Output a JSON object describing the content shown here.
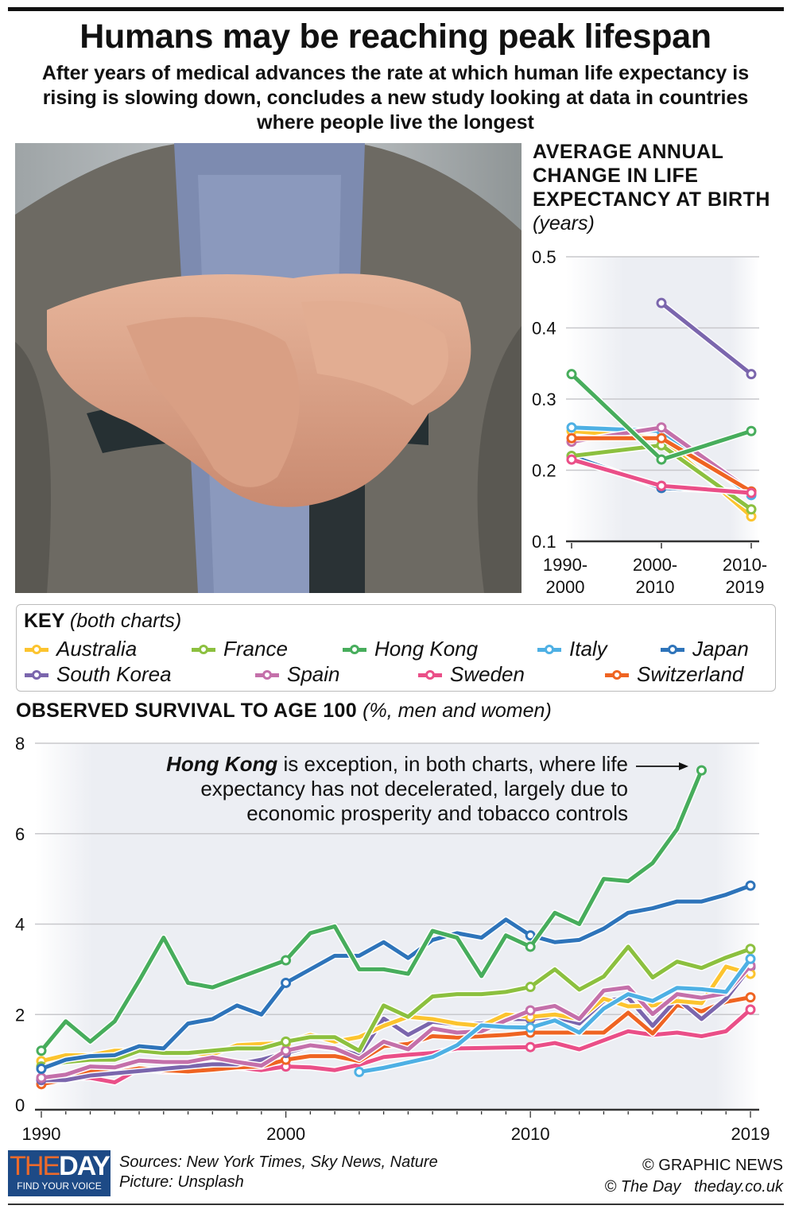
{
  "header": {
    "title": "Humans may be reaching peak lifespan",
    "subtitle": "After years of medical advances the rate at which human life expectancy is rising is slowing down, concludes a new study looking at data in countries where people live the longest"
  },
  "colors": {
    "Australia": "#fcc42f",
    "France": "#8cc03f",
    "Hong Kong": "#47ad5c",
    "Italy": "#4eb0e4",
    "Japan": "#2e74ba",
    "South Korea": "#7b66ad",
    "Spain": "#c470aa",
    "Sweden": "#ea4f88",
    "Switzerland": "#ef6422"
  },
  "key": {
    "title": "KEY",
    "subtitle": "(both charts)",
    "items": [
      "Australia",
      "France",
      "Hong Kong",
      "Italy",
      "Japan",
      "South Korea",
      "Spain",
      "Sweden",
      "Switzerland"
    ]
  },
  "chart_data": [
    {
      "type": "line",
      "title": "AVERAGE ANNUAL CHANGE IN LIFE EXPECTANCY AT BIRTH",
      "title_unit": "(years)",
      "categories": [
        "1990-2000",
        "2000-2010",
        "2010-2019"
      ],
      "ylim": [
        0.1,
        0.5
      ],
      "yticks": [
        "0.1",
        "0.2",
        "0.3",
        "0.4",
        "0.5"
      ],
      "grid": true,
      "series": [
        {
          "name": "Japan",
          "values": [
            0.22,
            0.175,
            0.17
          ]
        },
        {
          "name": "Sweden",
          "values": [
            0.215,
            0.178,
            0.168
          ]
        },
        {
          "name": "Australia",
          "values": [
            0.255,
            0.245,
            0.135
          ]
        },
        {
          "name": "France",
          "values": [
            0.22,
            0.235,
            0.145
          ]
        },
        {
          "name": "Italy",
          "values": [
            0.26,
            0.255,
            0.165
          ]
        },
        {
          "name": "Spain",
          "values": [
            0.24,
            0.26,
            0.17
          ]
        },
        {
          "name": "Switzerland",
          "values": [
            0.245,
            0.245,
            0.17
          ]
        },
        {
          "name": "Sweden",
          "values": [
            0.215,
            0.178,
            0.168
          ]
        },
        {
          "name": "South Korea",
          "values": [
            null,
            0.435,
            0.335
          ]
        },
        {
          "name": "Hong Kong",
          "values": [
            0.335,
            0.215,
            0.255
          ]
        }
      ]
    },
    {
      "type": "line",
      "title": "OBSERVED SURVIVAL TO AGE 100",
      "title_unit": "(%, men and women)",
      "x": [
        1990,
        1991,
        1992,
        1993,
        1994,
        1995,
        1996,
        1997,
        1998,
        1999,
        2000,
        2001,
        2002,
        2003,
        2004,
        2005,
        2006,
        2007,
        2008,
        2009,
        2010,
        2011,
        2012,
        2013,
        2014,
        2015,
        2016,
        2017,
        2018,
        2019
      ],
      "xticks": [
        "1990",
        "2000",
        "2010",
        "2019"
      ],
      "ylim": [
        0,
        8
      ],
      "yticks": [
        "0",
        "2",
        "4",
        "6",
        "8"
      ],
      "grid": true,
      "series": [
        {
          "name": "Sweden",
          "values": [
            0.56,
            0.59,
            0.6,
            0.5,
            0.8,
            0.74,
            0.74,
            0.8,
            0.83,
            0.77,
            0.85,
            0.83,
            0.77,
            0.89,
            1.06,
            1.11,
            1.15,
            1.25,
            1.26,
            1.27,
            1.28,
            1.37,
            1.23,
            1.43,
            1.63,
            1.55,
            1.6,
            1.52,
            1.63,
            2.11
          ]
        },
        {
          "name": "Switzerland",
          "values": [
            0.46,
            0.56,
            0.74,
            0.71,
            0.81,
            0.77,
            0.74,
            0.78,
            0.83,
            0.85,
            1.0,
            1.08,
            1.08,
            0.97,
            1.3,
            1.35,
            1.52,
            1.49,
            1.52,
            1.55,
            1.6,
            1.6,
            1.6,
            1.6,
            2.04,
            1.58,
            2.21,
            2.07,
            2.28,
            2.38
          ]
        },
        {
          "name": "South Korea",
          "values": [
            0.55,
            0.55,
            0.65,
            0.7,
            0.75,
            0.8,
            0.85,
            0.9,
            0.9,
            1.0,
            1.15,
            1.3,
            1.25,
            1.1,
            1.91,
            1.55,
            1.84,
            1.78,
            1.8,
            1.9,
            1.9,
            1.95,
            1.8,
            2.3,
            2.37,
            1.75,
            2.35,
            1.9,
            2.35,
            3.05
          ]
        },
        {
          "name": "Australia",
          "values": [
            0.97,
            1.1,
            1.1,
            1.2,
            1.2,
            1.15,
            1.15,
            1.12,
            1.32,
            1.35,
            1.37,
            1.55,
            1.4,
            1.5,
            1.75,
            1.95,
            1.9,
            1.8,
            1.75,
            2.0,
            1.95,
            2.0,
            1.9,
            2.35,
            2.18,
            2.2,
            2.3,
            2.25,
            3.06,
            2.9
          ]
        },
        {
          "name": "Spain",
          "values": [
            0.6,
            0.67,
            0.85,
            0.83,
            0.98,
            0.95,
            0.95,
            1.05,
            0.95,
            0.87,
            1.2,
            1.32,
            1.25,
            1.02,
            1.4,
            1.23,
            1.69,
            1.6,
            1.63,
            1.87,
            2.09,
            2.19,
            1.9,
            2.53,
            2.6,
            2.01,
            2.45,
            2.37,
            2.47,
            3.08
          ]
        },
        {
          "name": "Italy",
          "values": [
            null,
            null,
            null,
            null,
            null,
            null,
            null,
            null,
            null,
            null,
            null,
            null,
            null,
            0.73,
            0.82,
            0.94,
            1.06,
            1.32,
            1.76,
            1.72,
            1.71,
            1.87,
            1.6,
            2.13,
            2.45,
            2.3,
            2.59,
            2.56,
            2.5,
            3.23
          ]
        },
        {
          "name": "France",
          "values": [
            0.85,
            0.95,
            1.0,
            1.0,
            1.2,
            1.15,
            1.15,
            1.2,
            1.25,
            1.25,
            1.4,
            1.5,
            1.5,
            1.2,
            2.2,
            1.95,
            2.4,
            2.45,
            2.45,
            2.5,
            2.61,
            3.0,
            2.55,
            2.84,
            3.5,
            2.82,
            3.17,
            3.03,
            3.26,
            3.45
          ]
        },
        {
          "name": "Japan",
          "values": [
            0.8,
            1.0,
            1.08,
            1.1,
            1.3,
            1.25,
            1.8,
            1.9,
            2.2,
            2.0,
            2.7,
            3.0,
            3.3,
            3.3,
            3.6,
            3.25,
            3.65,
            3.8,
            3.7,
            4.1,
            3.75,
            3.6,
            3.65,
            3.9,
            4.25,
            4.35,
            4.5,
            4.5,
            4.65,
            4.85
          ]
        },
        {
          "name": "Hong Kong",
          "values": [
            1.2,
            1.85,
            1.4,
            1.85,
            2.75,
            3.7,
            2.7,
            2.6,
            2.8,
            3.0,
            3.2,
            3.8,
            3.95,
            3.0,
            3.0,
            2.9,
            3.85,
            3.7,
            2.85,
            3.75,
            3.5,
            4.25,
            4.0,
            5.0,
            4.95,
            5.35,
            6.1,
            7.4,
            null,
            null
          ]
        }
      ],
      "annotation": {
        "bold": "Hong Kong",
        "text": " is exception, in both charts, where life expectancy has not decelerated, largely due to economic prosperity and tobacco controls"
      }
    }
  ],
  "footer": {
    "logo_the": "THE",
    "logo_day": "DAY",
    "logo_tagline": "FIND YOUR VOICE",
    "sources": "Sources: New York Times, Sky News, Nature",
    "picture": "Picture: Unsplash",
    "credit1": "© GRAPHIC NEWS",
    "credit2": "© The Day",
    "website": "theday.co.uk"
  }
}
